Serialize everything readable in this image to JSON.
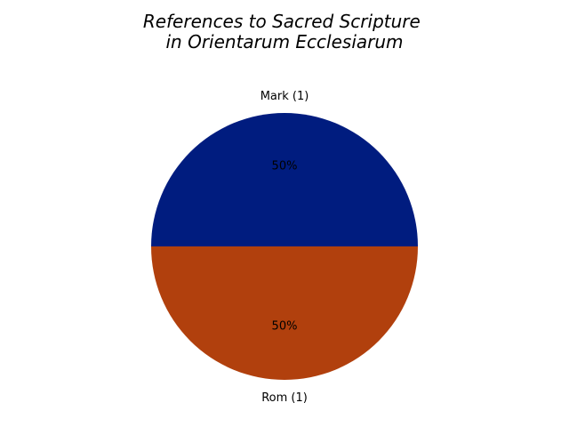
{
  "chart_data": {
    "type": "pie",
    "title": "References to Sacred Scripture\nin Orientarum Ecclesiarum",
    "categories": [
      "Mark (1)",
      "Rom (1)"
    ],
    "values": [
      1,
      1
    ],
    "percent_labels": [
      "50%",
      "50%"
    ],
    "colors": [
      "#001c7f",
      "#b1400d"
    ],
    "start_angle_deg": 0,
    "direction": "counterclockwise",
    "legend": "none",
    "grid": false
  }
}
